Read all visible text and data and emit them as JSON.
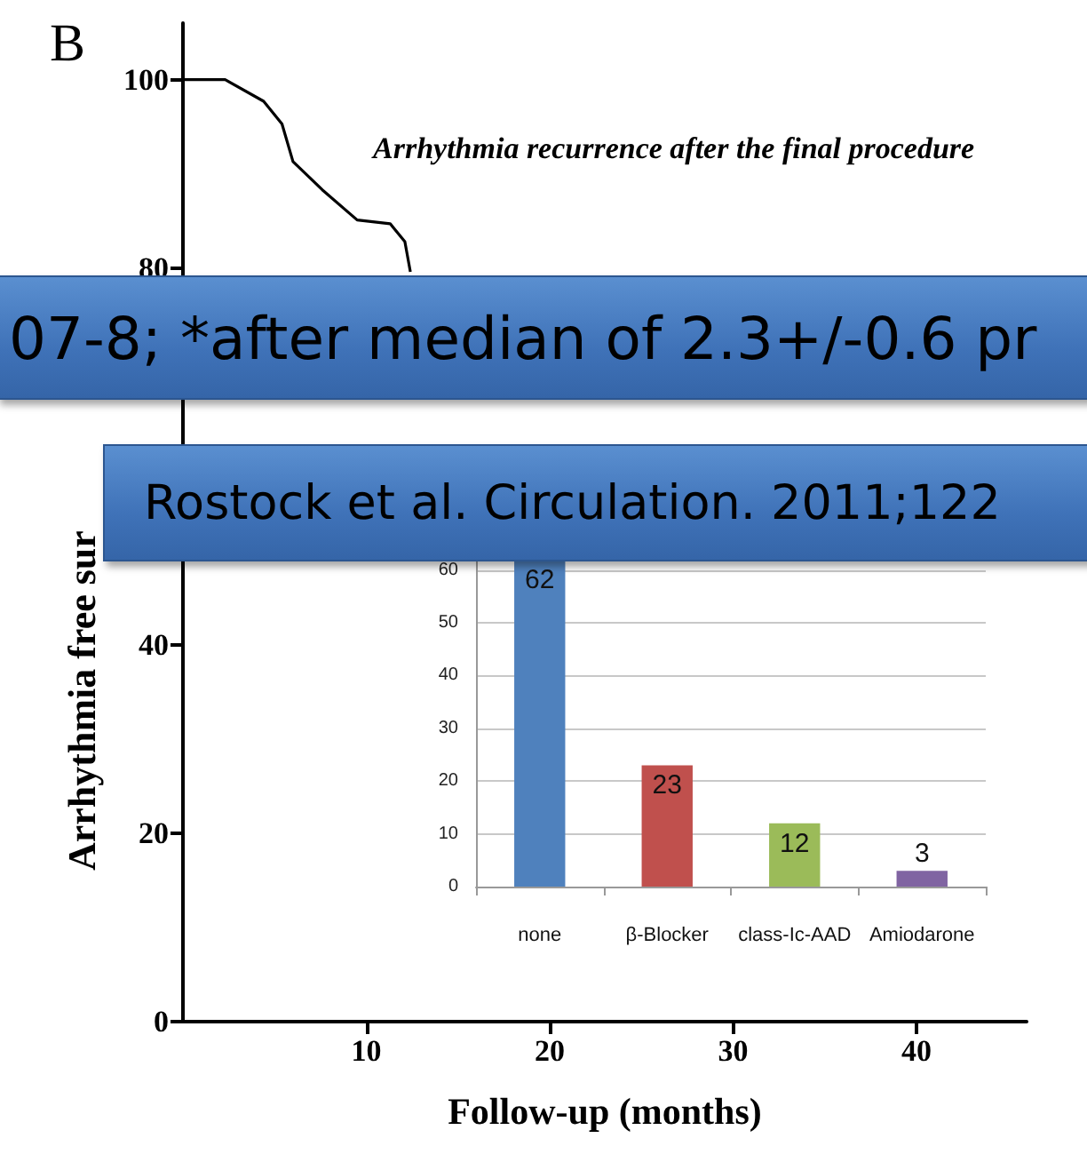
{
  "chart_data": [
    {
      "type": "line",
      "title": "Arrhythmia recurrence after the final procedure",
      "xlabel": "Follow-up (months)",
      "ylabel": "Arrhythmia free sur",
      "x": [
        0,
        2.3,
        4.4,
        5.4,
        6.0,
        7.6,
        9.5,
        11.3,
        12.1,
        12.4
      ],
      "values": [
        100,
        100,
        97.7,
        95.3,
        91.3,
        88.3,
        85.1,
        84.7,
        82.8,
        79.6
      ],
      "color": "#000000",
      "marker": "none",
      "grid": false,
      "xlim": [
        0,
        46
      ],
      "xticks": [
        10,
        20,
        30,
        40
      ],
      "ylim": [
        0,
        106
      ],
      "yticks": [
        0,
        20,
        40,
        80,
        100
      ],
      "annotations": [
        "B",
        "07-8; *after median of 2.3+/-0.6 pr",
        "Rostock et al. Circulation. 2011;122"
      ]
    },
    {
      "type": "bar",
      "categories": [
        "none",
        "β-Blocker",
        "class-Ic-AAD",
        "Amiodarone"
      ],
      "values": [
        62,
        23,
        12,
        3
      ],
      "colors": [
        "#4f81bd",
        "#c0504d",
        "#9bbb59",
        "#8064a2"
      ],
      "ylim": [
        0,
        65
      ],
      "yticks": [
        0,
        10,
        20,
        30,
        40,
        50,
        60
      ],
      "grid": "y",
      "data_labels": true
    }
  ]
}
